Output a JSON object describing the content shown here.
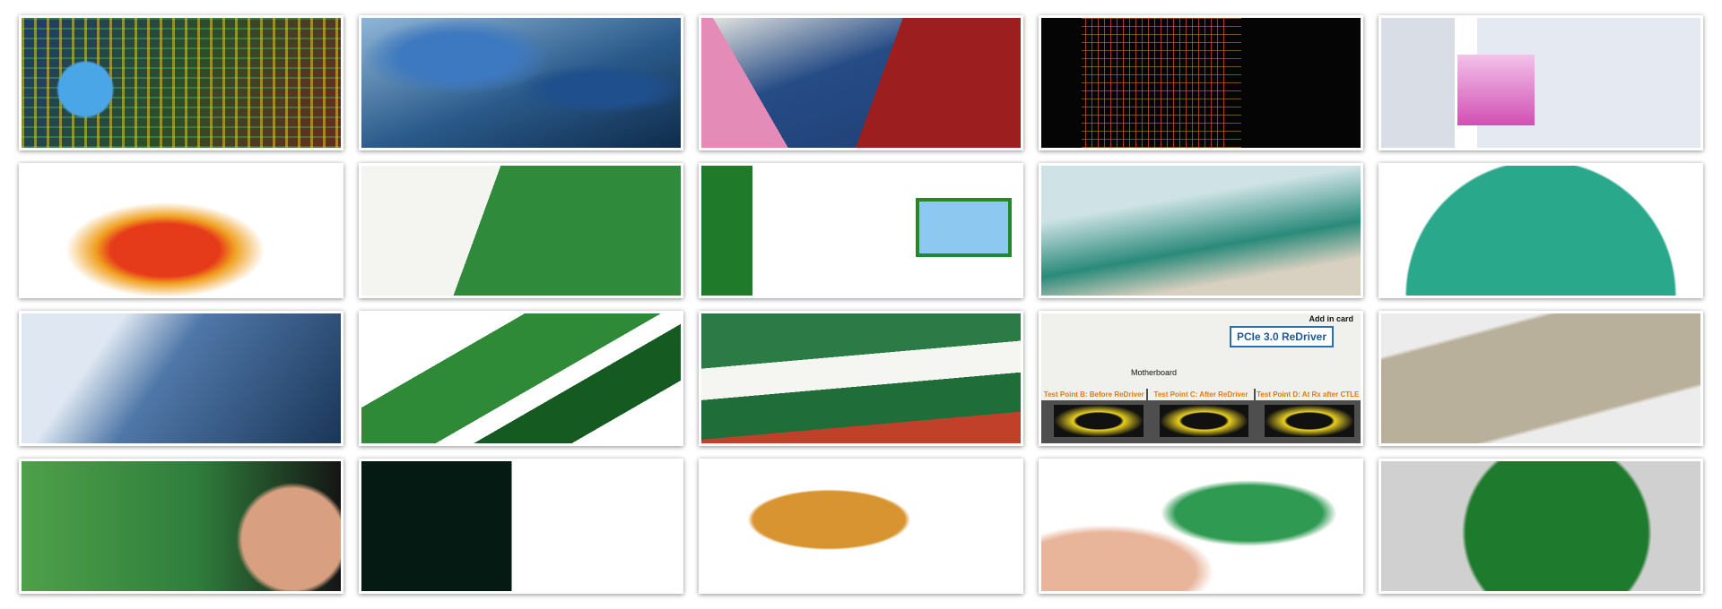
{
  "pcie_tile": {
    "badge": "PCIe 3.0 ReDriver",
    "add_in_card": "Add in card",
    "motherboard": "Motherboard",
    "test_points": [
      "Test Point B: Before ReDriver",
      "Test Point C: After ReDriver",
      "Test Point D: At Rx after CTLE"
    ]
  }
}
